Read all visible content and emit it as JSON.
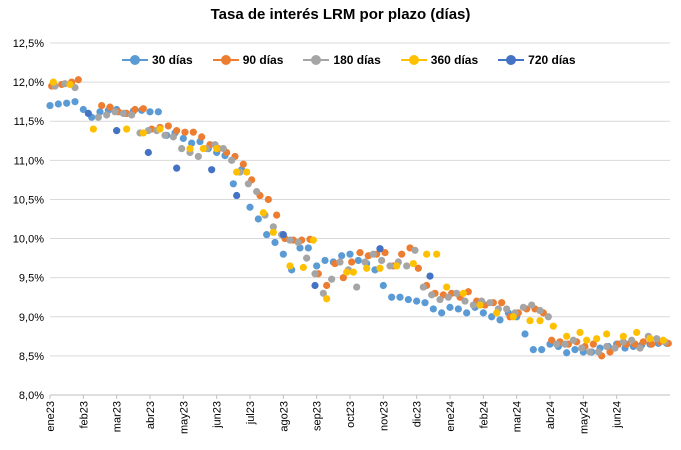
{
  "chart_data": {
    "type": "scatter",
    "title": "Tasa de interés LRM por plazo (días)",
    "xlabel": "",
    "ylabel": "",
    "ylim": [
      8.0,
      12.5
    ],
    "y_ticks": [
      "8,0%",
      "8,5%",
      "9,0%",
      "9,5%",
      "10,0%",
      "10,5%",
      "11,0%",
      "11,5%",
      "12,0%",
      "12,5%"
    ],
    "x_ticks": [
      "ene23",
      "feb23",
      "mar23",
      "abr23",
      "may23",
      "jun23",
      "jul23",
      "ago23",
      "sep23",
      "oct23",
      "nov23",
      "dic23",
      "ene24",
      "feb24",
      "mar24",
      "abr24",
      "may24",
      "jun24"
    ],
    "x_range": [
      0,
      18.6
    ],
    "legend": "top",
    "grid": "horizontal",
    "series": [
      {
        "name": "30 días",
        "color": "#5B9BD5",
        "x": [
          0.0,
          0.25,
          0.5,
          0.75,
          1.0,
          1.25,
          1.5,
          1.75,
          2.0,
          2.25,
          2.5,
          2.75,
          3.0,
          3.25,
          3.5,
          3.75,
          4.0,
          4.25,
          4.5,
          4.75,
          5.0,
          5.25,
          5.5,
          5.75,
          6.0,
          6.25,
          6.5,
          6.75,
          7.0,
          7.25,
          7.5,
          7.75,
          8.0,
          8.25,
          8.5,
          8.75,
          9.0,
          9.25,
          9.5,
          9.75,
          10.0,
          10.25,
          10.5,
          10.75,
          11.0,
          11.25,
          11.5,
          11.75,
          12.0,
          12.25,
          12.5,
          12.75,
          13.0,
          13.25,
          13.5,
          13.75,
          14.0,
          14.25,
          14.5,
          14.75,
          15.0,
          15.25,
          15.5,
          15.75,
          16.0,
          16.25,
          16.5,
          16.75,
          17.0,
          17.25,
          17.5,
          17.75,
          18.0,
          18.25,
          18.5
        ],
        "values": [
          11.7,
          11.72,
          11.73,
          11.75,
          11.65,
          11.55,
          11.62,
          11.64,
          11.65,
          11.6,
          11.63,
          11.64,
          11.62,
          11.62,
          11.32,
          11.35,
          11.28,
          11.22,
          11.24,
          11.15,
          11.1,
          11.06,
          10.7,
          10.88,
          10.4,
          10.25,
          10.05,
          9.95,
          9.8,
          9.6,
          9.88,
          9.88,
          9.65,
          9.72,
          9.7,
          9.78,
          9.8,
          9.72,
          9.68,
          9.6,
          9.4,
          9.25,
          9.25,
          9.22,
          9.2,
          9.18,
          9.1,
          9.05,
          9.12,
          9.1,
          9.05,
          9.12,
          9.05,
          9.0,
          8.96,
          9.05,
          9.0,
          8.78,
          8.58,
          8.58,
          8.65,
          8.62,
          8.54,
          8.58,
          8.55,
          8.55,
          8.6,
          8.62,
          8.65,
          8.6,
          8.62,
          8.64,
          8.65,
          8.66,
          8.66
        ]
      },
      {
        "name": "90 días",
        "color": "#ED7D31",
        "x": [
          0.05,
          0.35,
          0.65,
          0.85,
          1.55,
          1.8,
          2.05,
          2.3,
          2.55,
          2.8,
          3.05,
          3.3,
          3.55,
          3.8,
          4.05,
          4.3,
          4.55,
          4.8,
          5.05,
          5.3,
          5.55,
          5.8,
          6.05,
          6.3,
          6.55,
          6.8,
          7.05,
          7.3,
          7.55,
          7.8,
          8.05,
          8.3,
          8.55,
          8.8,
          9.05,
          9.3,
          9.55,
          9.8,
          10.05,
          10.3,
          10.55,
          10.8,
          11.05,
          11.3,
          11.55,
          11.8,
          12.05,
          12.3,
          12.55,
          12.8,
          13.05,
          13.3,
          13.55,
          13.8,
          14.05,
          14.3,
          14.55,
          14.8,
          15.05,
          15.3,
          15.55,
          15.8,
          16.05,
          16.3,
          16.55,
          16.8,
          17.05,
          17.3,
          17.55,
          17.8,
          18.05,
          18.3,
          18.55
        ],
        "values": [
          11.95,
          11.97,
          12.0,
          12.03,
          11.7,
          11.68,
          11.62,
          11.6,
          11.65,
          11.66,
          11.4,
          11.42,
          11.44,
          11.38,
          11.36,
          11.36,
          11.3,
          11.2,
          11.15,
          11.1,
          11.05,
          10.95,
          10.75,
          10.55,
          10.5,
          10.3,
          10.0,
          9.98,
          9.98,
          9.99,
          9.55,
          9.4,
          9.68,
          9.5,
          9.7,
          9.82,
          9.78,
          9.8,
          9.82,
          9.65,
          9.8,
          9.88,
          9.62,
          9.4,
          9.3,
          9.28,
          9.3,
          9.25,
          9.32,
          9.2,
          9.15,
          9.18,
          9.18,
          9.0,
          9.05,
          9.1,
          9.1,
          9.05,
          8.7,
          8.68,
          8.65,
          8.68,
          8.62,
          8.65,
          8.5,
          8.55,
          8.65,
          8.65,
          8.65,
          8.68,
          8.65,
          8.68,
          8.66
        ]
      },
      {
        "name": "180 días",
        "color": "#A5A5A5",
        "x": [
          0.15,
          0.45,
          0.75,
          1.45,
          1.7,
          1.95,
          2.2,
          2.45,
          2.7,
          2.95,
          3.2,
          3.45,
          3.7,
          3.95,
          4.2,
          4.45,
          4.7,
          4.95,
          5.2,
          5.45,
          5.7,
          5.95,
          6.2,
          6.45,
          6.7,
          6.95,
          7.2,
          7.45,
          7.7,
          7.95,
          8.2,
          8.45,
          8.7,
          8.95,
          9.2,
          9.45,
          9.7,
          9.95,
          10.2,
          10.45,
          10.7,
          10.95,
          11.2,
          11.45,
          11.7,
          11.95,
          12.2,
          12.45,
          12.7,
          12.95,
          13.2,
          13.45,
          13.7,
          13.95,
          14.2,
          14.45,
          14.7,
          14.95,
          15.2,
          15.45,
          15.7,
          15.95,
          16.2,
          16.45,
          16.7,
          16.95,
          17.2,
          17.45,
          17.7,
          17.95,
          18.2,
          18.45
        ],
        "values": [
          11.95,
          11.98,
          11.93,
          11.55,
          11.58,
          11.62,
          11.6,
          11.58,
          11.35,
          11.38,
          11.38,
          11.32,
          11.3,
          11.15,
          11.1,
          11.05,
          11.15,
          11.2,
          11.15,
          11.0,
          10.85,
          10.7,
          10.6,
          10.3,
          10.15,
          10.05,
          9.98,
          9.95,
          9.75,
          9.55,
          9.3,
          9.48,
          9.7,
          9.6,
          9.38,
          9.7,
          9.8,
          9.72,
          9.65,
          9.7,
          9.65,
          9.85,
          9.38,
          9.28,
          9.22,
          9.25,
          9.3,
          9.2,
          9.15,
          9.2,
          9.18,
          9.1,
          9.1,
          9.05,
          9.12,
          9.15,
          9.08,
          9.0,
          8.65,
          8.65,
          8.7,
          8.6,
          8.55,
          8.55,
          8.62,
          8.6,
          8.68,
          8.7,
          8.6,
          8.75,
          8.72,
          8.68
        ]
      },
      {
        "name": "360 días",
        "color": "#FFC000",
        "x": [
          0.1,
          0.6,
          1.3,
          2.0,
          2.3,
          2.8,
          3.3,
          4.2,
          4.6,
          5.0,
          5.6,
          5.9,
          6.4,
          6.7,
          7.2,
          7.6,
          7.9,
          8.3,
          8.9,
          9.1,
          9.5,
          9.9,
          10.4,
          10.9,
          11.3,
          11.6,
          11.9,
          12.4,
          12.9,
          13.4,
          13.9,
          14.4,
          14.7,
          15.1,
          15.5,
          15.9,
          16.1,
          16.4,
          16.7,
          17.2,
          17.6,
          18.0,
          18.4
        ],
        "values": [
          12.0,
          11.97,
          11.4,
          11.38,
          11.4,
          11.35,
          11.4,
          11.15,
          11.15,
          11.15,
          10.85,
          10.85,
          10.33,
          10.08,
          9.65,
          9.63,
          9.98,
          9.23,
          9.57,
          9.57,
          9.62,
          9.62,
          9.65,
          9.68,
          9.8,
          9.8,
          9.38,
          9.3,
          9.15,
          9.05,
          9.0,
          8.95,
          8.95,
          8.88,
          8.75,
          8.8,
          8.7,
          8.72,
          8.78,
          8.75,
          8.8,
          8.72,
          8.7
        ]
      },
      {
        "name": "720 días",
        "color": "#4472C4",
        "x": [
          1.15,
          2.0,
          2.95,
          3.8,
          4.85,
          5.6,
          7.0,
          7.95,
          9.9,
          11.4
        ],
        "values": [
          11.6,
          11.38,
          11.1,
          10.9,
          10.88,
          10.55,
          10.05,
          9.4,
          9.87,
          9.52
        ]
      }
    ]
  }
}
